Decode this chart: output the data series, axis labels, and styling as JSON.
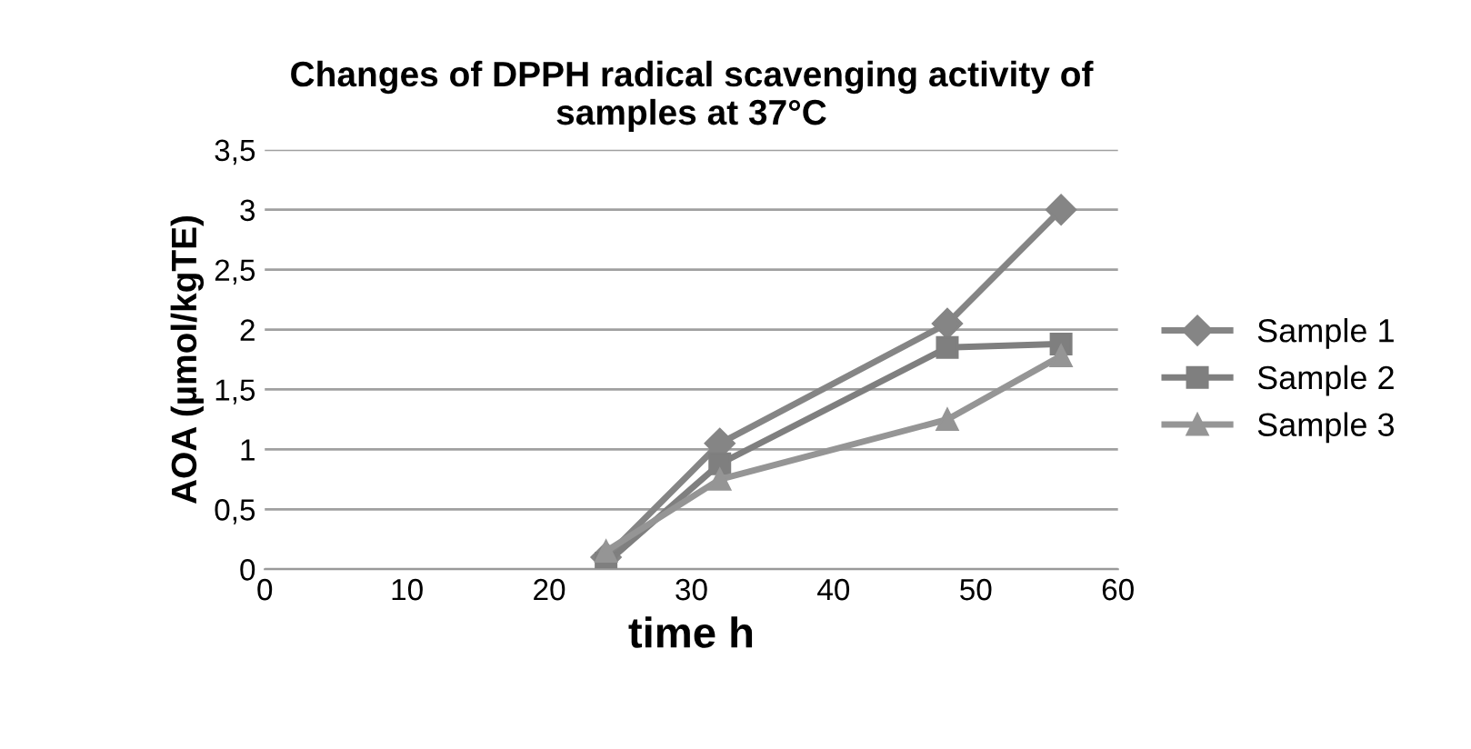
{
  "chart_data": {
    "type": "line",
    "title": "Changes of DPPH radical scavenging activity of\nsamples at 37°C",
    "xlabel": "time h",
    "ylabel": "AOA (µmol/kgTE)",
    "x": [
      24,
      32,
      48,
      56
    ],
    "series": [
      {
        "name": "Sample 1",
        "color": "#858585",
        "marker": "diamond",
        "values": [
          0.1,
          1.05,
          2.05,
          3.0
        ]
      },
      {
        "name": "Sample 2",
        "color": "#7f7f7f",
        "marker": "square",
        "values": [
          0.05,
          0.88,
          1.85,
          1.88
        ]
      },
      {
        "name": "Sample 3",
        "color": "#959595",
        "marker": "triangle",
        "values": [
          0.15,
          0.75,
          1.25,
          1.78
        ]
      }
    ],
    "xlim": [
      0,
      60
    ],
    "xticks": [
      0,
      10,
      20,
      30,
      40,
      50,
      60
    ],
    "ylim": [
      0,
      3.5
    ],
    "yticks": [
      0,
      {
        "value": 0.5,
        "label": "0,5"
      },
      1,
      {
        "value": 1.5,
        "label": "1,5"
      },
      2,
      {
        "value": 2.5,
        "label": "2,5"
      },
      3,
      {
        "value": 3.5,
        "label": "3,5"
      }
    ],
    "grid": "y",
    "legend": "right"
  }
}
